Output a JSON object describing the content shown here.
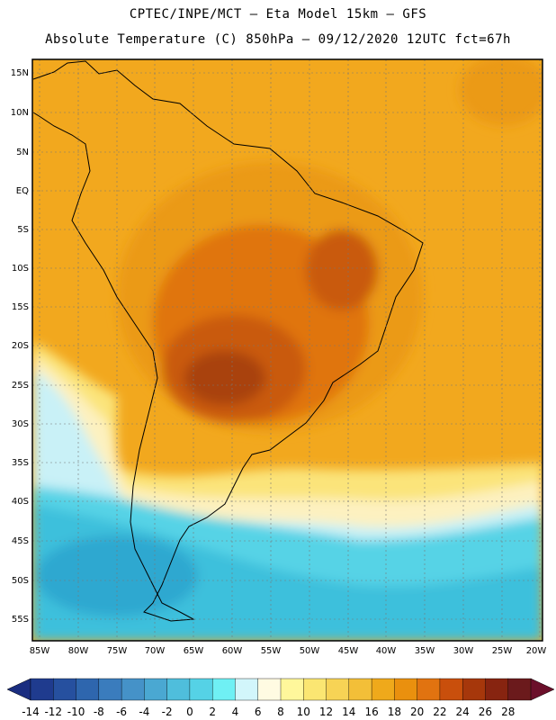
{
  "header": {
    "line1": "CPTEC/INPE/MCT –  Eta Model 15km – GFS",
    "line2": "Absolute Temperature (C) 850hPa – 09/12/2020 12UTC fct=67h"
  },
  "axes": {
    "lat_labels": [
      "15N",
      "10N",
      "5N",
      "EQ",
      "5S",
      "10S",
      "15S",
      "20S",
      "25S",
      "30S",
      "35S",
      "40S",
      "45S",
      "50S",
      "55S"
    ],
    "lon_labels": [
      "85W",
      "80W",
      "75W",
      "70W",
      "65W",
      "60W",
      "55W",
      "50W",
      "45W",
      "40W",
      "35W",
      "30W",
      "25W",
      "20W"
    ]
  },
  "colorbar": {
    "labels": [
      "-14",
      "-12",
      "-10",
      "-8",
      "-6",
      "-4",
      "-2",
      "0",
      "2",
      "4",
      "6",
      "8",
      "10",
      "12",
      "14",
      "16",
      "18",
      "20",
      "22",
      "24",
      "26",
      "28"
    ],
    "colors": [
      "#1f3b8e",
      "#26509f",
      "#2e66ae",
      "#3a7cbd",
      "#4592c8",
      "#4aa8d2",
      "#4fbedc",
      "#55d2e6",
      "#6ff0f4",
      "#d2f6fb",
      "#fffbe2",
      "#fff79b",
      "#fbe672",
      "#f7d355",
      "#f3bf38",
      "#efa91b",
      "#ea900e",
      "#e17310",
      "#c94f0c",
      "#a6370b",
      "#872410",
      "#6b1a1c"
    ],
    "under_color": "#1a2d80",
    "over_color": "#6b0f2a"
  },
  "field_colors": {
    "t28": "#f2a81e",
    "t26": "#eb9a12",
    "t24": "#e0740f",
    "t22": "#c95a0e",
    "t20": "#a9420b",
    "t18": "#f7d050",
    "t16": "#fbe47a",
    "t14": "#fdf1c0",
    "t12": "#fffce8",
    "t10": "#c9f1f7",
    "t8": "#57d3e6",
    "t6": "#3ec0dc",
    "t4": "#2fa8d0"
  }
}
